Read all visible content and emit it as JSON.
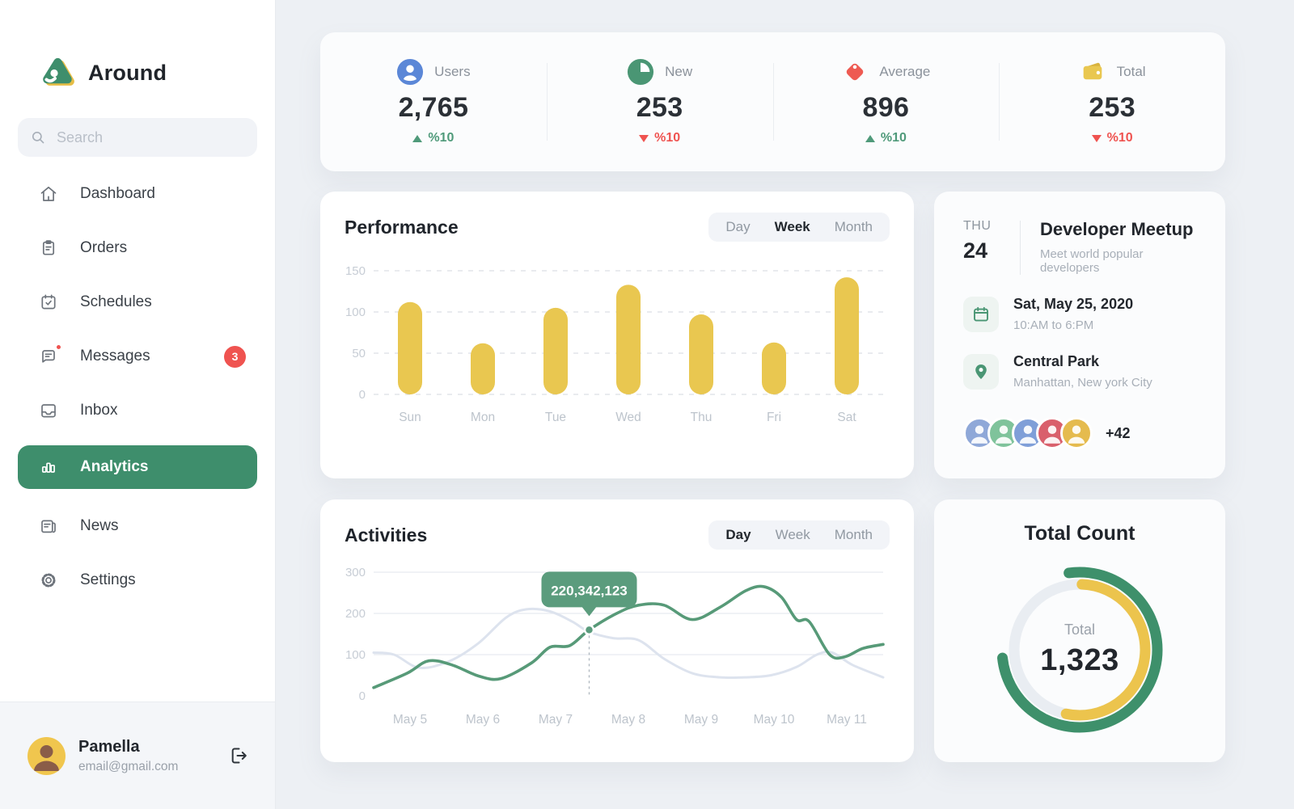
{
  "app": {
    "name": "Around"
  },
  "colors": {
    "accent_green": "#3e8e6c",
    "bar_yellow": "#e9c750",
    "line_green": "#579a78",
    "line_gray": "#dde3ee",
    "tooltip_green": "#5b9c7d",
    "badge_red": "#ef5350",
    "delta_up_green": "#4f9a7a",
    "delta_down_red": "#ef5350",
    "users_icon_blue": "#5b87d7",
    "new_icon_green": "#4a9674",
    "average_icon_red": "#ee5a52",
    "total_icon_yellow": "#e9c750"
  },
  "sidebar": {
    "search_placeholder": "Search",
    "items": [
      {
        "label": "Dashboard",
        "icon": "home-icon"
      },
      {
        "label": "Orders",
        "icon": "clipboard-icon"
      },
      {
        "label": "Schedules",
        "icon": "calendar-check-icon"
      },
      {
        "label": "Messages",
        "icon": "chat-icon",
        "badge": "3",
        "unread_dot": true
      },
      {
        "label": "Inbox",
        "icon": "inbox-icon"
      },
      {
        "label": "Analytics",
        "icon": "bar-chart-icon",
        "active": true
      },
      {
        "label": "News",
        "icon": "news-icon"
      },
      {
        "label": "Settings",
        "icon": "gear-icon"
      }
    ],
    "user": {
      "name": "Pamella",
      "email": "email@gmail.com"
    }
  },
  "stats": [
    {
      "label": "Users",
      "value": "2,765",
      "delta": "%10",
      "direction": "up",
      "icon": "user-icon"
    },
    {
      "label": "New",
      "value": "253",
      "delta": "%10",
      "direction": "down",
      "icon": "pie-icon"
    },
    {
      "label": "Average",
      "value": "896",
      "delta": "%10",
      "direction": "up",
      "icon": "tag-icon"
    },
    {
      "label": "Total",
      "value": "253",
      "delta": "%10",
      "direction": "down",
      "icon": "wallet-icon"
    }
  ],
  "performance": {
    "title": "Performance",
    "tabs": [
      {
        "label": "Day"
      },
      {
        "label": "Week",
        "active": true
      },
      {
        "label": "Month"
      }
    ]
  },
  "activities": {
    "title": "Activities",
    "tabs": [
      {
        "label": "Day",
        "active": true
      },
      {
        "label": "Week"
      },
      {
        "label": "Month"
      }
    ]
  },
  "event": {
    "weekday": "THU",
    "day": "24",
    "title": "Developer Meetup",
    "subtitle": "Meet world popular developers",
    "date": "Sat, May 25, 2020",
    "time": "10:AM to 6:PM",
    "location": "Central Park",
    "city": "Manhattan, New york City",
    "attendee_colors": [
      "#8fa8d8",
      "#7fc39b",
      "#7f9fd8",
      "#d9606c",
      "#e5bb4e"
    ],
    "more_label": "+42"
  },
  "chart_data": [
    {
      "id": "performance",
      "type": "bar",
      "title": "Performance",
      "categories": [
        "Sun",
        "Mon",
        "Tue",
        "Wed",
        "Thu",
        "Fri",
        "Sat"
      ],
      "values": [
        112,
        62,
        105,
        133,
        97,
        63,
        142
      ],
      "y_ticks": [
        150,
        100,
        50,
        0
      ],
      "ylim": [
        0,
        150
      ],
      "xlabel": "",
      "ylabel": "",
      "grid": "dashed horizontal",
      "legend": "none",
      "bar_color": "#e9c750"
    },
    {
      "id": "activities",
      "type": "line",
      "title": "Activities",
      "x_labels": [
        "May 5",
        "May 6",
        "May 7",
        "May 8",
        "May 9",
        "May 10",
        "May 11"
      ],
      "y_ticks": [
        300,
        200,
        100,
        0
      ],
      "ylim": [
        0,
        300
      ],
      "grid": "solid horizontal",
      "legend": "none",
      "series": [
        {
          "name": "previous",
          "color": "#dde3ee",
          "width": 3,
          "points": [
            [
              0,
              105
            ],
            [
              0.04,
              100
            ],
            [
              0.09,
              68
            ],
            [
              0.15,
              85
            ],
            [
              0.206,
              128
            ],
            [
              0.26,
              190
            ],
            [
              0.3,
              210
            ],
            [
              0.346,
              205
            ],
            [
              0.39,
              180
            ],
            [
              0.423,
              155
            ],
            [
              0.47,
              140
            ],
            [
              0.52,
              135
            ],
            [
              0.57,
              90
            ],
            [
              0.625,
              55
            ],
            [
              0.68,
              45
            ],
            [
              0.73,
              45
            ],
            [
              0.78,
              50
            ],
            [
              0.83,
              70
            ],
            [
              0.87,
              100
            ],
            [
              0.9,
              105
            ],
            [
              0.94,
              75
            ],
            [
              1,
              45
            ]
          ]
        },
        {
          "name": "current",
          "color": "#579a78",
          "width": 3.6,
          "points": [
            [
              0,
              20
            ],
            [
              0.066,
              55
            ],
            [
              0.108,
              85
            ],
            [
              0.154,
              75
            ],
            [
              0.206,
              48
            ],
            [
              0.25,
              42
            ],
            [
              0.31,
              80
            ],
            [
              0.346,
              118
            ],
            [
              0.385,
              122
            ],
            [
              0.423,
              160
            ],
            [
              0.477,
              200
            ],
            [
              0.52,
              220
            ],
            [
              0.57,
              220
            ],
            [
              0.625,
              185
            ],
            [
              0.68,
              215
            ],
            [
              0.73,
              255
            ],
            [
              0.765,
              265
            ],
            [
              0.8,
              240
            ],
            [
              0.83,
              185
            ],
            [
              0.855,
              180
            ],
            [
              0.895,
              100
            ],
            [
              0.925,
              95
            ],
            [
              0.96,
              115
            ],
            [
              1,
              125
            ]
          ]
        }
      ],
      "tooltip": {
        "x": 0.423,
        "value": 160,
        "label": "220,342,123",
        "color": "#5b9c7d"
      }
    },
    {
      "id": "total-count",
      "type": "donut",
      "title": "Total Count",
      "center_label": "Total",
      "center_value": "1,323",
      "track": {
        "color": "#e9edf2",
        "radius": 81,
        "width": 13
      },
      "arcs": [
        {
          "name": "outer-green",
          "color": "#3e906b",
          "radius": 96,
          "width": 13,
          "start_deg": -8,
          "end_deg": 264
        },
        {
          "name": "inner-yellow",
          "color": "#ecc44d",
          "radius": 81,
          "width": 13,
          "start_deg": 2,
          "end_deg": 192
        }
      ]
    }
  ]
}
